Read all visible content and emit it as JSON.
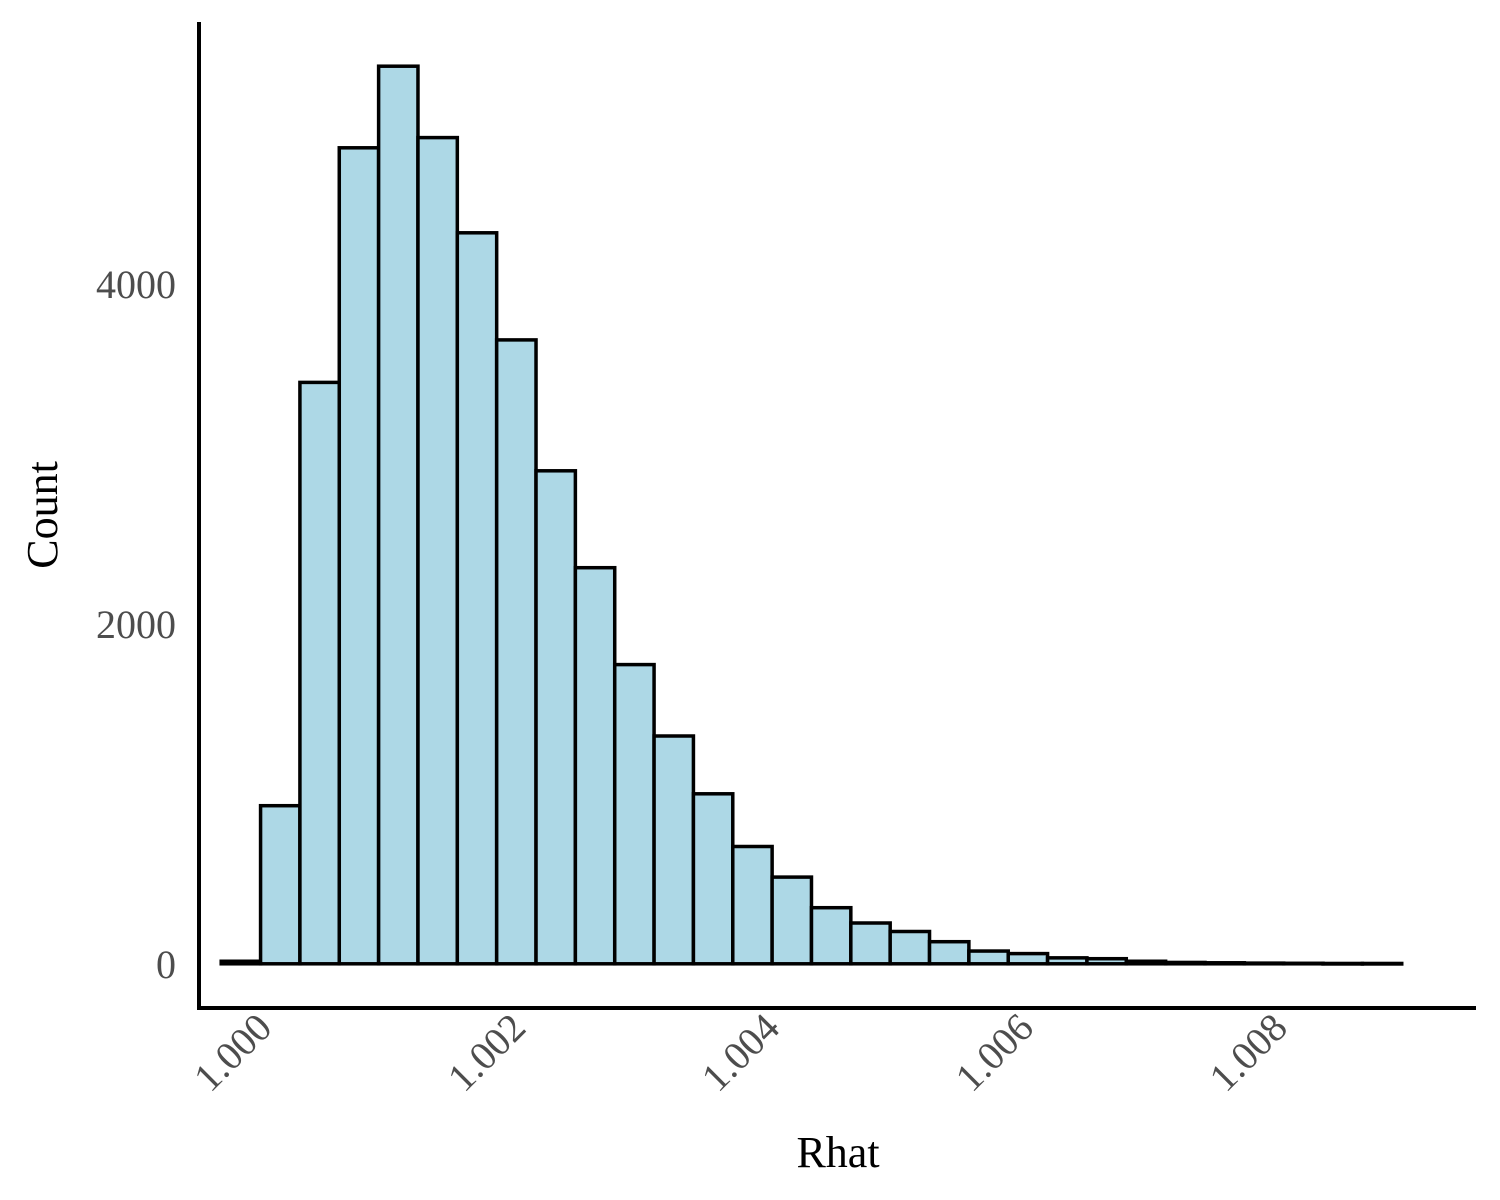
{
  "chart_data": {
    "type": "bar",
    "xlabel": "Rhat",
    "ylabel": "Count",
    "bin_width": 0.00031,
    "bins": [
      {
        "x": 0.99985,
        "count": 15
      },
      {
        "x": 1.00016,
        "count": 930
      },
      {
        "x": 1.00047,
        "count": 3420
      },
      {
        "x": 1.00078,
        "count": 4800
      },
      {
        "x": 1.00109,
        "count": 5280
      },
      {
        "x": 1.0014,
        "count": 4860
      },
      {
        "x": 1.00171,
        "count": 4300
      },
      {
        "x": 1.00202,
        "count": 3670
      },
      {
        "x": 1.00233,
        "count": 2900
      },
      {
        "x": 1.00264,
        "count": 2330
      },
      {
        "x": 1.00295,
        "count": 1760
      },
      {
        "x": 1.00326,
        "count": 1340
      },
      {
        "x": 1.00357,
        "count": 1000
      },
      {
        "x": 1.00388,
        "count": 690
      },
      {
        "x": 1.00419,
        "count": 510
      },
      {
        "x": 1.0045,
        "count": 330
      },
      {
        "x": 1.00481,
        "count": 240
      },
      {
        "x": 1.00512,
        "count": 190
      },
      {
        "x": 1.00543,
        "count": 130
      },
      {
        "x": 1.00574,
        "count": 75
      },
      {
        "x": 1.00605,
        "count": 60
      },
      {
        "x": 1.00636,
        "count": 35
      },
      {
        "x": 1.00667,
        "count": 30
      },
      {
        "x": 1.00698,
        "count": 15
      },
      {
        "x": 1.00729,
        "count": 8
      },
      {
        "x": 1.0076,
        "count": 6
      },
      {
        "x": 1.00791,
        "count": 4
      },
      {
        "x": 1.00822,
        "count": 3
      },
      {
        "x": 1.00853,
        "count": 2
      },
      {
        "x": 1.00884,
        "count": 2
      }
    ],
    "x_ticks": [
      "1.000",
      "1.002",
      "1.004",
      "1.006",
      "1.008"
    ],
    "x_tick_values": [
      1.0,
      1.002,
      1.004,
      1.006,
      1.008
    ],
    "y_ticks": [
      "0",
      "2000",
      "4000"
    ],
    "y_tick_values": [
      0,
      2000,
      4000
    ],
    "xlim": [
      0.99952,
      1.00958
    ],
    "ylim": [
      -260,
      5540
    ],
    "bar_fill": "#add8e6",
    "bar_stroke": "#000000",
    "grid": false
  }
}
